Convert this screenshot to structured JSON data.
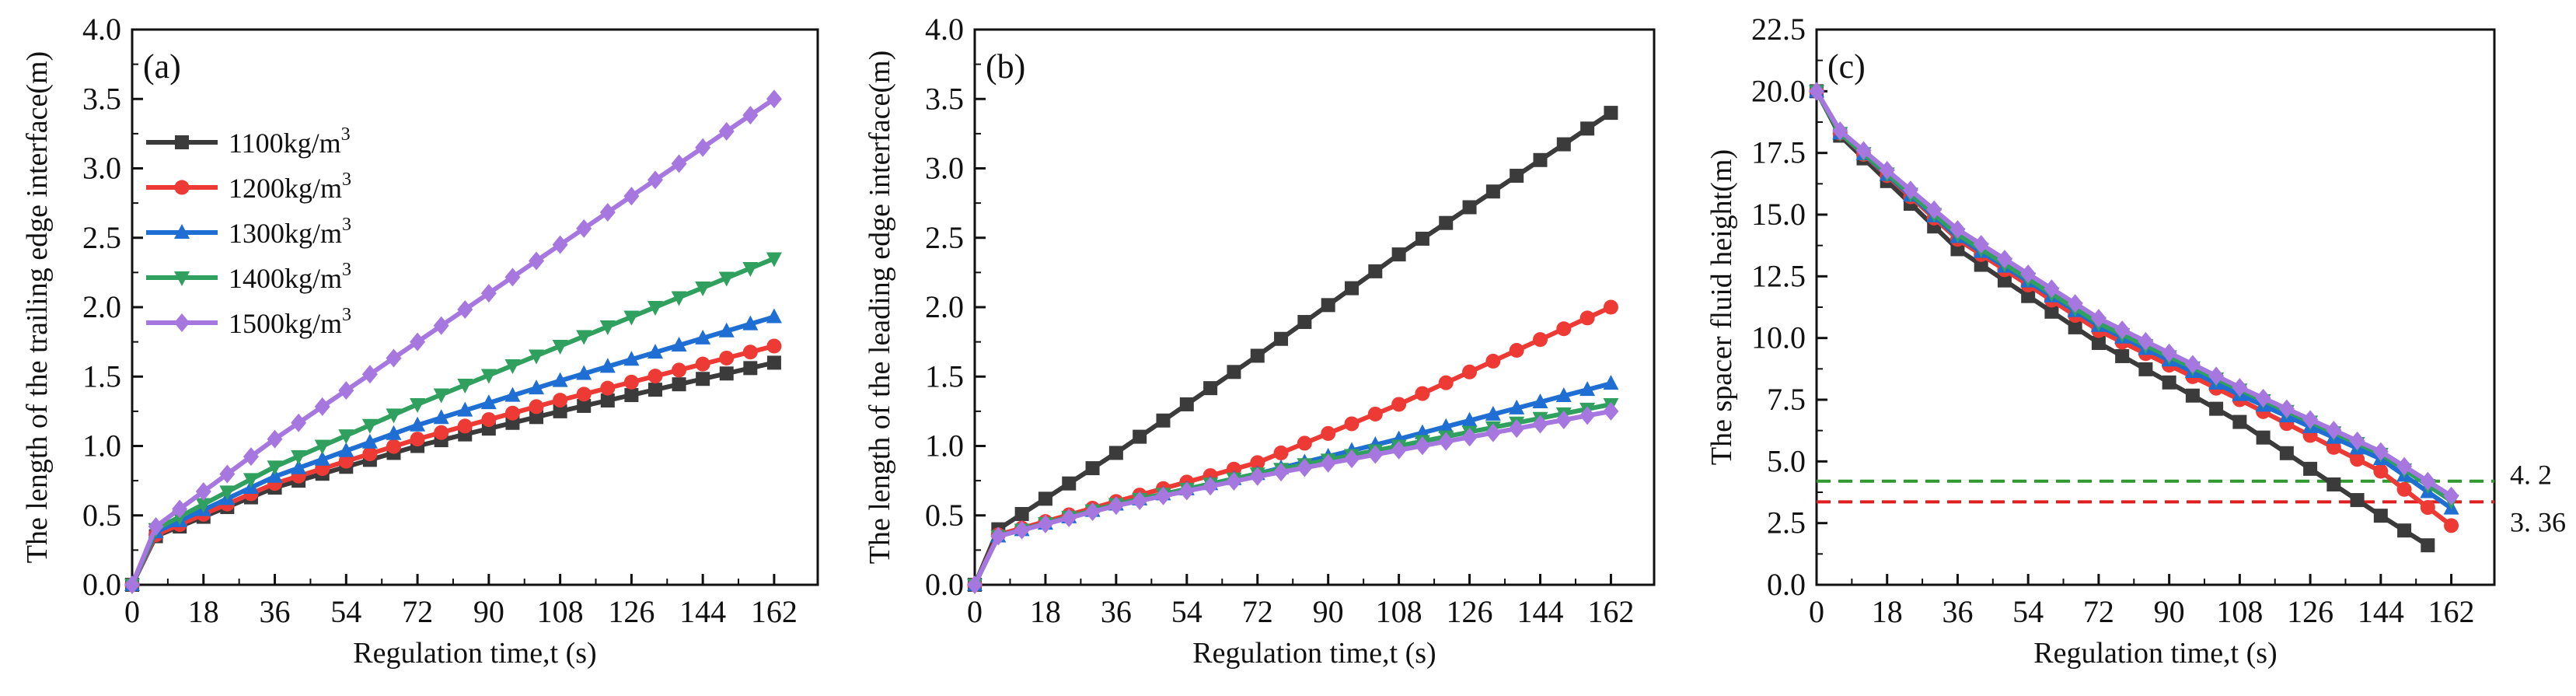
{
  "colors": {
    "1100": "#3b3b3b",
    "1200": "#ee3a34",
    "1300": "#1f6ed4",
    "1400": "#2fa05e",
    "1500": "#a777e0",
    "ref_green": "#2e9a2e",
    "ref_red": "#e01e1e"
  },
  "chart_data": [
    {
      "type": "line",
      "panel_label": "(a)",
      "title": "",
      "xlabel": "Regulation time,t (s)",
      "ylabel": "The length of the trailing edge interface(m)",
      "xlim": [
        0,
        173
      ],
      "ylim": [
        0,
        4.0
      ],
      "xticks": [
        "0",
        "18",
        "36",
        "54",
        "72",
        "90",
        "108",
        "126",
        "144",
        "162"
      ],
      "yticks": [
        "0.0",
        "0.5",
        "1.0",
        "1.5",
        "2.0",
        "2.5",
        "3.0",
        "3.5",
        "4.0"
      ],
      "legend": {
        "placement": "upper-left",
        "unit": "kg/m",
        "unit_sup": "3",
        "entries": [
          {
            "key": "1100",
            "value": "1100",
            "marker": "square"
          },
          {
            "key": "1200",
            "value": "1200",
            "marker": "circle"
          },
          {
            "key": "1300",
            "value": "1300",
            "marker": "triangle-up"
          },
          {
            "key": "1400",
            "value": "1400",
            "marker": "triangle-down"
          },
          {
            "key": "1500",
            "value": "1500",
            "marker": "diamond"
          }
        ]
      },
      "x": {
        "start": 0,
        "step": 6,
        "count": 28
      },
      "series": [
        {
          "name": "1100kg/m3",
          "color_key": "1100",
          "marker": "square",
          "y_anchors": [
            [
              0,
              0
            ],
            [
              6,
              0.35
            ],
            [
              36,
              0.7
            ],
            [
              72,
              1.0
            ],
            [
              108,
              1.25
            ],
            [
              162,
              1.6
            ]
          ]
        },
        {
          "name": "1200kg/m3",
          "color_key": "1200",
          "marker": "circle",
          "y_anchors": [
            [
              0,
              0
            ],
            [
              6,
              0.36
            ],
            [
              36,
              0.73
            ],
            [
              72,
              1.05
            ],
            [
              108,
              1.33
            ],
            [
              162,
              1.72
            ]
          ]
        },
        {
          "name": "1300kg/m3",
          "color_key": "1300",
          "marker": "triangle-up",
          "y_anchors": [
            [
              0,
              0
            ],
            [
              6,
              0.38
            ],
            [
              36,
              0.78
            ],
            [
              72,
              1.15
            ],
            [
              108,
              1.47
            ],
            [
              162,
              1.93
            ]
          ]
        },
        {
          "name": "1400kg/m3",
          "color_key": "1400",
          "marker": "triangle-down",
          "y_anchors": [
            [
              0,
              0
            ],
            [
              6,
              0.4
            ],
            [
              36,
              0.85
            ],
            [
              72,
              1.3
            ],
            [
              108,
              1.72
            ],
            [
              162,
              2.35
            ]
          ]
        },
        {
          "name": "1500kg/m3",
          "color_key": "1500",
          "marker": "diamond",
          "y_anchors": [
            [
              0,
              0
            ],
            [
              6,
              0.42
            ],
            [
              36,
              1.05
            ],
            [
              72,
              1.75
            ],
            [
              108,
              2.45
            ],
            [
              162,
              3.5
            ]
          ]
        }
      ]
    },
    {
      "type": "line",
      "panel_label": "(b)",
      "title": "",
      "xlabel": "Regulation time,t (s)",
      "ylabel": "The length of the leading edge interface(m)",
      "xlim": [
        0,
        173
      ],
      "ylim": [
        0,
        4.0
      ],
      "xticks": [
        "0",
        "18",
        "36",
        "54",
        "72",
        "90",
        "108",
        "126",
        "144",
        "162"
      ],
      "yticks": [
        "0.0",
        "0.5",
        "1.0",
        "1.5",
        "2.0",
        "2.5",
        "3.0",
        "3.5",
        "4.0"
      ],
      "x": {
        "start": 0,
        "step": 6,
        "count": 28
      },
      "series": [
        {
          "name": "1100kg/m3",
          "color_key": "1100",
          "marker": "square",
          "y_anchors": [
            [
              0,
              0
            ],
            [
              6,
              0.4
            ],
            [
              36,
              0.95
            ],
            [
              72,
              1.65
            ],
            [
              108,
              2.38
            ],
            [
              162,
              3.4
            ]
          ]
        },
        {
          "name": "1200kg/m3",
          "color_key": "1200",
          "marker": "circle",
          "y_anchors": [
            [
              0,
              0
            ],
            [
              6,
              0.36
            ],
            [
              36,
              0.6
            ],
            [
              72,
              0.88
            ],
            [
              108,
              1.3
            ],
            [
              162,
              2.0
            ]
          ]
        },
        {
          "name": "1300kg/m3",
          "color_key": "1300",
          "marker": "triangle-up",
          "y_anchors": [
            [
              0,
              0
            ],
            [
              6,
              0.35
            ],
            [
              36,
              0.58
            ],
            [
              72,
              0.8
            ],
            [
              108,
              1.05
            ],
            [
              162,
              1.45
            ]
          ]
        },
        {
          "name": "1400kg/m3",
          "color_key": "1400",
          "marker": "triangle-down",
          "y_anchors": [
            [
              0,
              0
            ],
            [
              6,
              0.35
            ],
            [
              36,
              0.58
            ],
            [
              72,
              0.8
            ],
            [
              108,
              1.0
            ],
            [
              162,
              1.3
            ]
          ]
        },
        {
          "name": "1500kg/m3",
          "color_key": "1500",
          "marker": "diamond",
          "y_anchors": [
            [
              0,
              0
            ],
            [
              6,
              0.35
            ],
            [
              36,
              0.57
            ],
            [
              72,
              0.78
            ],
            [
              108,
              0.97
            ],
            [
              162,
              1.25
            ]
          ]
        }
      ]
    },
    {
      "type": "line",
      "panel_label": "(c)",
      "title": "",
      "xlabel": "Regulation time,t (s)",
      "ylabel": "The spacer fluid height(m)",
      "xlim": [
        0,
        173
      ],
      "ylim": [
        0,
        22.5
      ],
      "xticks": [
        "0",
        "18",
        "36",
        "54",
        "72",
        "90",
        "108",
        "126",
        "144",
        "162"
      ],
      "yticks": [
        "0.0",
        "2.5",
        "5.0",
        "7.5",
        "10.0",
        "12.5",
        "15.0",
        "17.5",
        "20.0",
        "22.5"
      ],
      "reference_lines": [
        {
          "value": 4.2,
          "label": "4. 2",
          "color_key": "ref_green",
          "style": "dashed"
        },
        {
          "value": 3.36,
          "label": "3. 36",
          "color_key": "ref_red",
          "style": "dashed"
        }
      ],
      "series": [
        {
          "name": "1100kg/m3",
          "color_key": "1100",
          "marker": "square",
          "x": {
            "start": 0,
            "step": 6,
            "count": 27
          },
          "y_anchors": [
            [
              0,
              20
            ],
            [
              6,
              18.2
            ],
            [
              36,
              13.6
            ],
            [
              72,
              9.8
            ],
            [
              108,
              6.6
            ],
            [
              126,
              4.7
            ],
            [
              144,
              2.8
            ],
            [
              156,
              1.6
            ]
          ]
        },
        {
          "name": "1200kg/m3",
          "color_key": "1200",
          "marker": "circle",
          "x": {
            "start": 0,
            "step": 6,
            "count": 28
          },
          "y_anchors": [
            [
              0,
              20
            ],
            [
              6,
              18.3
            ],
            [
              36,
              14.0
            ],
            [
              72,
              10.3
            ],
            [
              108,
              7.5
            ],
            [
              144,
              4.6
            ],
            [
              162,
              2.4
            ]
          ]
        },
        {
          "name": "1300kg/m3",
          "color_key": "1300",
          "marker": "triangle-up",
          "x": {
            "start": 0,
            "step": 6,
            "count": 28
          },
          "y_anchors": [
            [
              0,
              20
            ],
            [
              6,
              18.3
            ],
            [
              36,
              14.1
            ],
            [
              72,
              10.5
            ],
            [
              108,
              7.7
            ],
            [
              144,
              5.1
            ],
            [
              162,
              3.1
            ]
          ]
        },
        {
          "name": "1400kg/m3",
          "color_key": "1400",
          "marker": "triangle-down",
          "x": {
            "start": 0,
            "step": 6,
            "count": 28
          },
          "y_anchors": [
            [
              0,
              20
            ],
            [
              6,
              18.3
            ],
            [
              36,
              14.2
            ],
            [
              72,
              10.6
            ],
            [
              108,
              7.9
            ],
            [
              144,
              5.3
            ],
            [
              162,
              3.4
            ]
          ]
        },
        {
          "name": "1500kg/m3",
          "color_key": "1500",
          "marker": "diamond",
          "x": {
            "start": 0,
            "step": 6,
            "count": 28
          },
          "y_anchors": [
            [
              0,
              20
            ],
            [
              6,
              18.4
            ],
            [
              36,
              14.4
            ],
            [
              72,
              10.8
            ],
            [
              108,
              8.0
            ],
            [
              144,
              5.4
            ],
            [
              162,
              3.6
            ]
          ]
        }
      ]
    }
  ]
}
